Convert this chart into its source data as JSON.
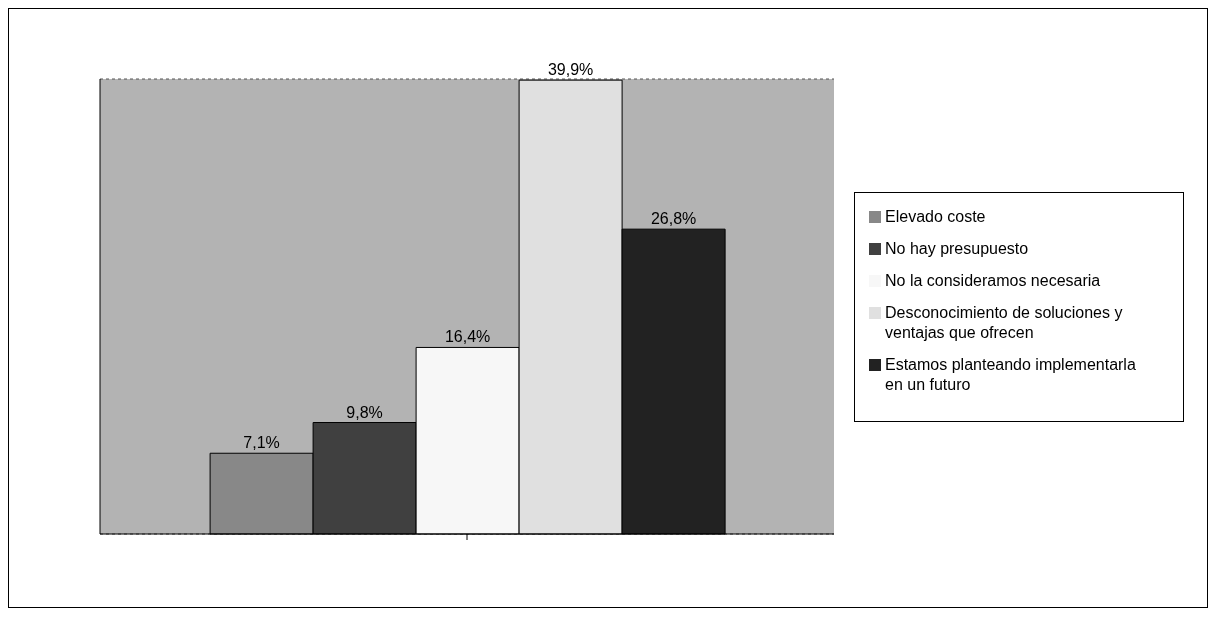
{
  "chart_data": {
    "type": "bar",
    "categories": [
      null
    ],
    "series": [
      {
        "name": "Elevado coste",
        "color": "#888888",
        "values": [
          7.1
        ],
        "value_labels": [
          "7,1%"
        ]
      },
      {
        "name": "No hay presupuesto",
        "color": "#404040",
        "values": [
          9.8
        ],
        "value_labels": [
          "9,8%"
        ]
      },
      {
        "name": "No la consideramos necesaria",
        "color": "#f7f7f7",
        "values": [
          16.4
        ],
        "value_labels": [
          "16,4%"
        ]
      },
      {
        "name": "Desconocimiento de soluciones y ventajas que ofrecen",
        "color": "#e0e0e0",
        "values": [
          39.9
        ],
        "value_labels": [
          "39,9%"
        ]
      },
      {
        "name": "Estamos planteando implementarla en un futuro",
        "color": "#222222",
        "values": [
          26.8
        ],
        "value_labels": [
          "26,8%"
        ]
      }
    ],
    "grid": "y",
    "legend": "right"
  }
}
